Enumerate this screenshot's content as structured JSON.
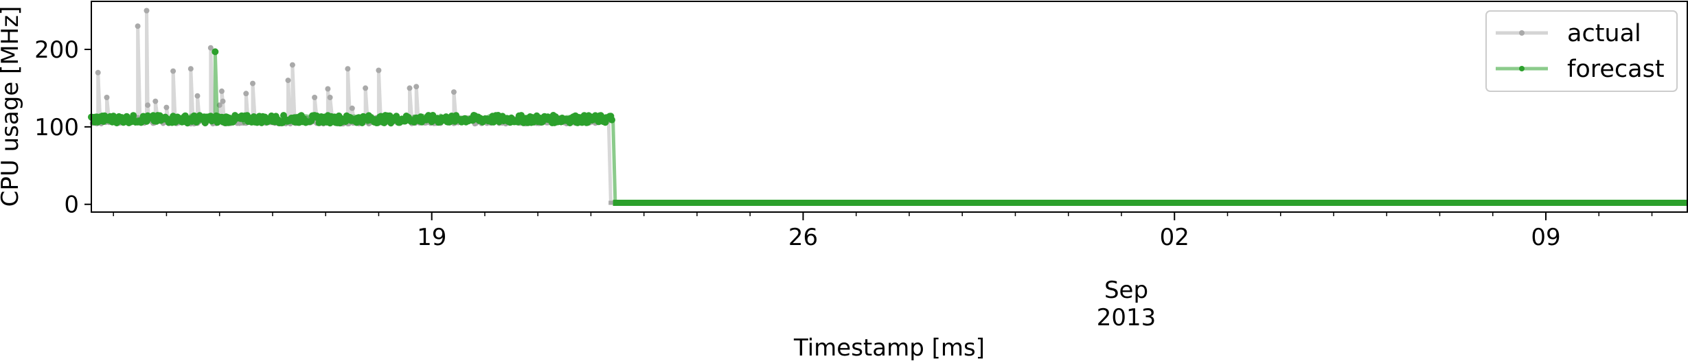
{
  "chart_data": {
    "type": "line",
    "xlabel": "Timestamp [ms]",
    "ylabel": "CPU usage [MHz]",
    "x_ticks": {
      "major": [
        "19",
        "26",
        "02",
        "09"
      ],
      "month_label": "Sep",
      "year_label": "2013"
    },
    "x_range": [
      "2013-08-12T14:00",
      "2013-09-11T16:00"
    ],
    "ylim": [
      -10,
      262
    ],
    "y_ticks": [
      0,
      100,
      200
    ],
    "grid": false,
    "legend_position": "top-right",
    "series": [
      {
        "name": "actual",
        "color": "#a9a9a9",
        "marker": "dot",
        "baseline_before_drop": 108,
        "drop_date": "2013-08-22T08:00",
        "value_after_drop": 2,
        "spikes": [
          {
            "x": "2013-08-12T17:00",
            "y": 170
          },
          {
            "x": "2013-08-12T21:00",
            "y": 138
          },
          {
            "x": "2013-08-13T11:00",
            "y": 230
          },
          {
            "x": "2013-08-13T15:00",
            "y": 250
          },
          {
            "x": "2013-08-13T15:30",
            "y": 128
          },
          {
            "x": "2013-08-13T19:00",
            "y": 133
          },
          {
            "x": "2013-08-14T00:00",
            "y": 125
          },
          {
            "x": "2013-08-14T03:00",
            "y": 172
          },
          {
            "x": "2013-08-14T11:00",
            "y": 175
          },
          {
            "x": "2013-08-14T14:00",
            "y": 140
          },
          {
            "x": "2013-08-14T20:00",
            "y": 202
          },
          {
            "x": "2013-08-15T00:00",
            "y": 128
          },
          {
            "x": "2013-08-15T01:00",
            "y": 146
          },
          {
            "x": "2013-08-15T01:30",
            "y": 133
          },
          {
            "x": "2013-08-15T12:00",
            "y": 143
          },
          {
            "x": "2013-08-15T15:00",
            "y": 156
          },
          {
            "x": "2013-08-16T07:00",
            "y": 160
          },
          {
            "x": "2013-08-16T09:00",
            "y": 180
          },
          {
            "x": "2013-08-16T19:00",
            "y": 138
          },
          {
            "x": "2013-08-17T01:00",
            "y": 149
          },
          {
            "x": "2013-08-17T02:00",
            "y": 138
          },
          {
            "x": "2013-08-17T10:00",
            "y": 175
          },
          {
            "x": "2013-08-17T12:00",
            "y": 124
          },
          {
            "x": "2013-08-17T18:00",
            "y": 150
          },
          {
            "x": "2013-08-18T00:00",
            "y": 173
          },
          {
            "x": "2013-08-18T14:00",
            "y": 150
          },
          {
            "x": "2013-08-18T17:00",
            "y": 152
          },
          {
            "x": "2013-08-19T10:00",
            "y": 145
          }
        ]
      },
      {
        "name": "forecast",
        "color": "#2ca02c",
        "marker": "dot",
        "baseline_before_drop": 110,
        "drop_date": "2013-08-22T10:00",
        "value_after_drop": 2,
        "spikes": [
          {
            "x": "2013-08-14T22:00",
            "y": 197
          }
        ]
      }
    ]
  }
}
